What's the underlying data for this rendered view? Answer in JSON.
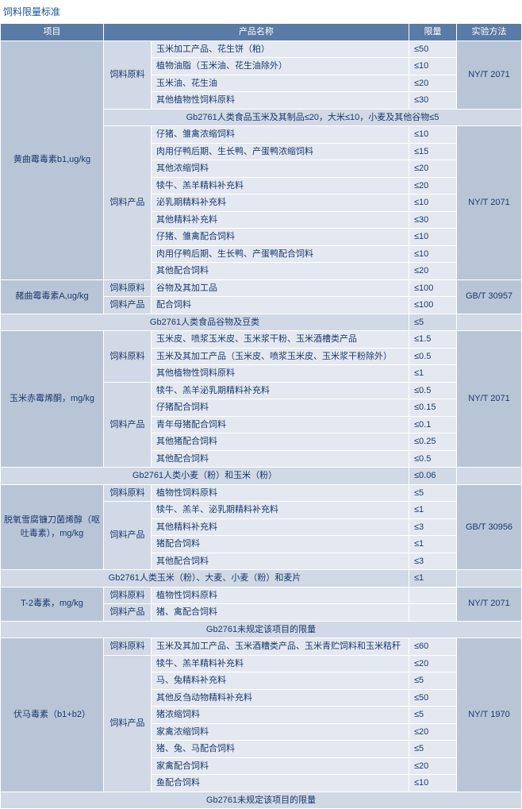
{
  "title": "饲料限量标准",
  "headers": {
    "project": "项目",
    "product": "产品名称",
    "limit": "限量",
    "method": "实验方法"
  },
  "colors": {
    "hdr": "#5a7ba5",
    "c1": "#b8c5d6",
    "c2": "#d0d9e5",
    "c3": "#e4e9f1",
    "text": "#1a3a6e",
    "title": "#1a5490"
  },
  "cat": {
    "raw": "饲料原料",
    "prod": "饲料产品"
  },
  "methods": {
    "m1": "NY/T 2071",
    "m2": "GB/T 30957",
    "m3": "GB/T 30956",
    "m4": "NY/T 1970"
  },
  "s1": {
    "name": "黄曲霉毒素b1,ug/kg",
    "raw": [
      {
        "p": "玉米加工产品、花生饼（粕）",
        "l": "≤50"
      },
      {
        "p": "植物油脂（玉米油、花生油除外）",
        "l": "≤10"
      },
      {
        "p": "玉米油、花生油",
        "l": "≤20"
      },
      {
        "p": "其他植物性饲料原料",
        "l": "≤30"
      }
    ],
    "gb1": "Gb2761人类食品玉米及其制品≤20，大米≤10，小麦及其他谷物≤5",
    "prod": [
      {
        "p": "仔猪、雏禽浓缩饲料",
        "l": "≤10"
      },
      {
        "p": "肉用仔鸭后期、生长鸭、产蛋鸭浓缩饲料",
        "l": "≤15"
      },
      {
        "p": "其他浓缩饲料",
        "l": "≤20"
      },
      {
        "p": "犊牛、羔羊精料补充料",
        "l": "≤20"
      },
      {
        "p": "泌乳期精料补充料",
        "l": "≤10"
      },
      {
        "p": "其他精料补充料",
        "l": "≤30"
      },
      {
        "p": "仔猪、雏禽配合饲料",
        "l": "≤10"
      },
      {
        "p": "肉用仔鸭后期、生长鸭、产蛋鸭配合饲料",
        "l": "≤10"
      },
      {
        "p": "其他配合饲料",
        "l": "≤20"
      }
    ]
  },
  "s2": {
    "name": "赭曲霉毒素A,ug/kg",
    "raw": [
      {
        "p": "谷物及其加工品",
        "l": "≤100"
      }
    ],
    "prod": [
      {
        "p": "配合饲料",
        "l": "≤100"
      }
    ],
    "gb": "Gb2761人类食品谷物及豆类",
    "gbl": "≤5"
  },
  "s3": {
    "name": "玉米赤霉烯酮，mg/kg",
    "raw": [
      {
        "p": "玉米皮、喷浆玉米皮、玉米浆干粉、玉米酒槽类产品",
        "l": "≤1.5"
      },
      {
        "p": "玉米及其加工产品（玉米皮、喷浆玉米皮、玉米浆干粉除外）",
        "l": "≤0.5"
      },
      {
        "p": "其他植物性饲料原料",
        "l": "≤1"
      }
    ],
    "prod": [
      {
        "p": "犊牛、羔羊泌乳期精料补充料",
        "l": "≤0.5"
      },
      {
        "p": "仔猪配合饲料",
        "l": "≤0.15"
      },
      {
        "p": "青年母猪配合饲料",
        "l": "≤0.1"
      },
      {
        "p": "其他猪配合饲料",
        "l": "≤0.25"
      },
      {
        "p": "其他配合饲料",
        "l": "≤0.5"
      }
    ],
    "gb": "Gb2761人类小麦（粉）和玉米（粉）",
    "gbl": "≤0.06"
  },
  "s4": {
    "name": "脱氧雪腐镰刀菌烯醇（呕吐毒素），mg/kg",
    "raw": [
      {
        "p": "植物性饲料原料",
        "l": "≤5"
      }
    ],
    "prod": [
      {
        "p": "犊牛、羔羊、泌乳期精料补充料",
        "l": "≤1"
      },
      {
        "p": "其他精料补充料",
        "l": "≤3"
      },
      {
        "p": "猪配合饲料",
        "l": "≤1"
      },
      {
        "p": "其他配合饲料",
        "l": "≤3"
      }
    ],
    "gb": "Gb2761人类玉米（粉）、大麦、小麦（粉）和麦片",
    "gbl": "≤1"
  },
  "s5": {
    "name": "T-2毒素，mg/kg",
    "raw": [
      {
        "p": "植物性饲料原料",
        "l": ""
      }
    ],
    "prod": [
      {
        "p": "猪、禽配合饲料",
        "l": ""
      }
    ],
    "gb": "Gb2761未规定该项目的限量"
  },
  "s6": {
    "name": "伏马毒素（b1+b2）",
    "raw": [
      {
        "p": "玉米及其加工产品、玉米酒糟类产品、玉米青贮饲料和玉米秸秆",
        "l": "≤60"
      }
    ],
    "prod": [
      {
        "p": "犊牛、羔羊精料补充料",
        "l": "≤20"
      },
      {
        "p": "马、兔精料补充料",
        "l": "≤5"
      },
      {
        "p": "其他反刍动物精料补充料",
        "l": "≤50"
      },
      {
        "p": "猪浓缩饲料",
        "l": "≤5"
      },
      {
        "p": "家禽浓缩饲料",
        "l": "≤20"
      },
      {
        "p": "猪、兔、马配合饲料",
        "l": "≤5"
      },
      {
        "p": "家禽配合饲料",
        "l": "≤20"
      },
      {
        "p": "鱼配合饲料",
        "l": "≤10"
      }
    ],
    "gb": "Gb2761未规定该项目的限量"
  }
}
